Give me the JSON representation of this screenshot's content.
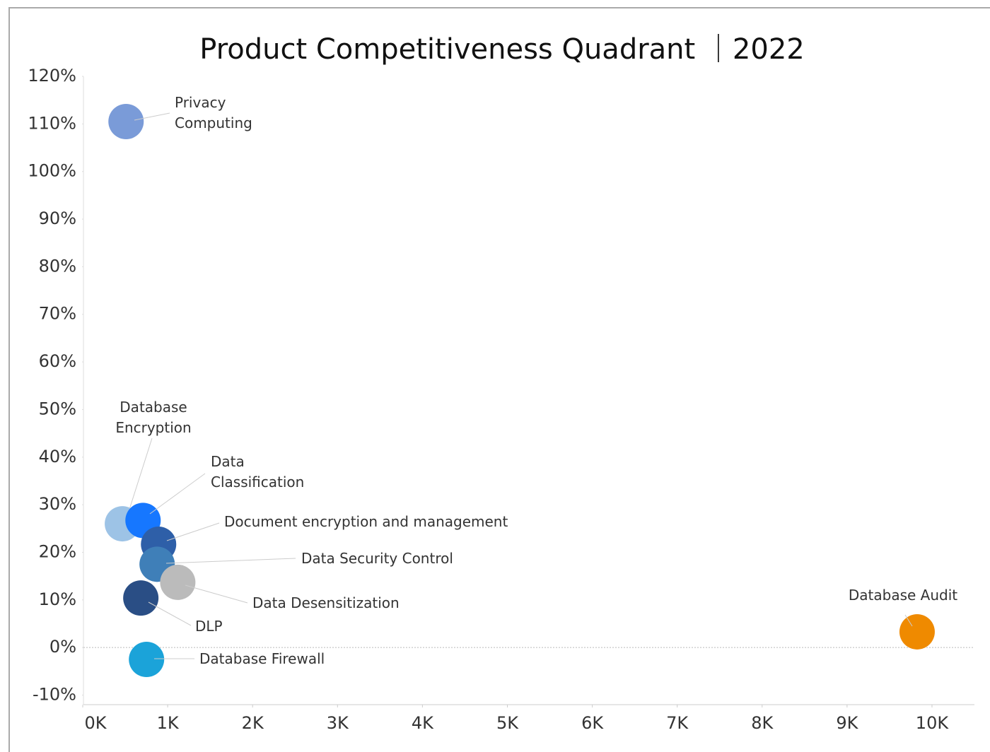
{
  "chart_data": {
    "type": "bubble",
    "title": "Product Competitiveness Quadrant ｜2022",
    "xlim": [
      0,
      10500
    ],
    "xticks": [
      {
        "value": 0,
        "label": "0K"
      },
      {
        "value": 1000,
        "label": "1K"
      },
      {
        "value": 2000,
        "label": "2K"
      },
      {
        "value": 3000,
        "label": "3K"
      },
      {
        "value": 4000,
        "label": "4K"
      },
      {
        "value": 5000,
        "label": "5K"
      },
      {
        "value": 6000,
        "label": "6K"
      },
      {
        "value": 7000,
        "label": "7K"
      },
      {
        "value": 8000,
        "label": "8K"
      },
      {
        "value": 9000,
        "label": "9K"
      },
      {
        "value": 10000,
        "label": "10K"
      }
    ],
    "ylim": [
      -12,
      120
    ],
    "yticks": [
      {
        "value": -10,
        "label": "-10%"
      },
      {
        "value": 0,
        "label": "0%"
      },
      {
        "value": 10,
        "label": "10%"
      },
      {
        "value": 20,
        "label": "20%"
      },
      {
        "value": 30,
        "label": "30%"
      },
      {
        "value": 40,
        "label": "40%"
      },
      {
        "value": 50,
        "label": "50%"
      },
      {
        "value": 60,
        "label": "60%"
      },
      {
        "value": 70,
        "label": "70%"
      },
      {
        "value": 80,
        "label": "80%"
      },
      {
        "value": 90,
        "label": "90%"
      },
      {
        "value": 100,
        "label": "100%"
      },
      {
        "value": 110,
        "label": "110%"
      },
      {
        "value": 120,
        "label": "120%"
      }
    ],
    "series": [
      {
        "name": "Privacy Computing",
        "color": "#7a9bd8",
        "x": [
          510
        ],
        "values": [
          110.5
        ]
      },
      {
        "name": "Database Encryption",
        "color": "#9dc3e6",
        "x": [
          467
        ],
        "values": [
          26
        ]
      },
      {
        "name": "Data Classification",
        "color": "#1677ff",
        "x": [
          710
        ],
        "values": [
          26.7
        ]
      },
      {
        "name": "Document encryption and management",
        "color": "#2e5fa8",
        "x": [
          893
        ],
        "values": [
          21.7
        ]
      },
      {
        "name": "Data Security Control",
        "color": "#3f7fb8",
        "x": [
          876
        ],
        "values": [
          17.5
        ]
      },
      {
        "name": "Data Desensitization",
        "color": "#bbbbbb",
        "x": [
          1119
        ],
        "values": [
          13.7
        ]
      },
      {
        "name": "DLP",
        "color": "#2a4e85",
        "x": [
          684
        ],
        "values": [
          10.4
        ]
      },
      {
        "name": "Database Firewall",
        "color": "#1ba3d9",
        "x": [
          751
        ],
        "values": [
          -2.5
        ]
      },
      {
        "name": "Database Audit",
        "color": "#ef8a00",
        "x": [
          9825
        ],
        "values": [
          3.3
        ]
      }
    ]
  }
}
